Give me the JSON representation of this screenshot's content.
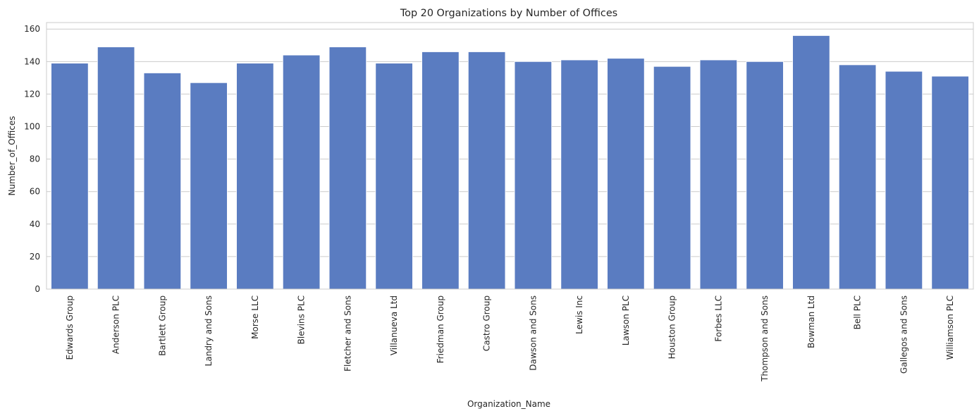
{
  "chart_data": {
    "type": "bar",
    "title": "Top 20 Organizations by Number of Offices",
    "xlabel": "Organization_Name",
    "ylabel": "Number_of_Offices",
    "categories": [
      "Edwards Group",
      "Anderson PLC",
      "Bartlett Group",
      "Landry and Sons",
      "Morse LLC",
      "Blevins PLC",
      "Fletcher and Sons",
      "Villanueva Ltd",
      "Friedman Group",
      "Castro Group",
      "Dawson and Sons",
      "Lewis Inc",
      "Lawson PLC",
      "Houston Group",
      "Forbes LLC",
      "Thompson and Sons",
      "Bowman Ltd",
      "Bell PLC",
      "Gallegos and Sons",
      "Williamson PLC"
    ],
    "values": [
      139,
      149,
      133,
      127,
      139,
      144,
      149,
      139,
      146,
      146,
      140,
      141,
      142,
      137,
      141,
      140,
      156,
      138,
      134,
      131
    ],
    "ylim": [
      0,
      164
    ],
    "yticks": [
      "0",
      "20",
      "40",
      "60",
      "80",
      "100",
      "120",
      "140",
      "160"
    ],
    "grid": "horizontal",
    "bar_color": "#5a7cc1",
    "grid_color": "#cccccc",
    "spine_color": "#cccccc"
  }
}
